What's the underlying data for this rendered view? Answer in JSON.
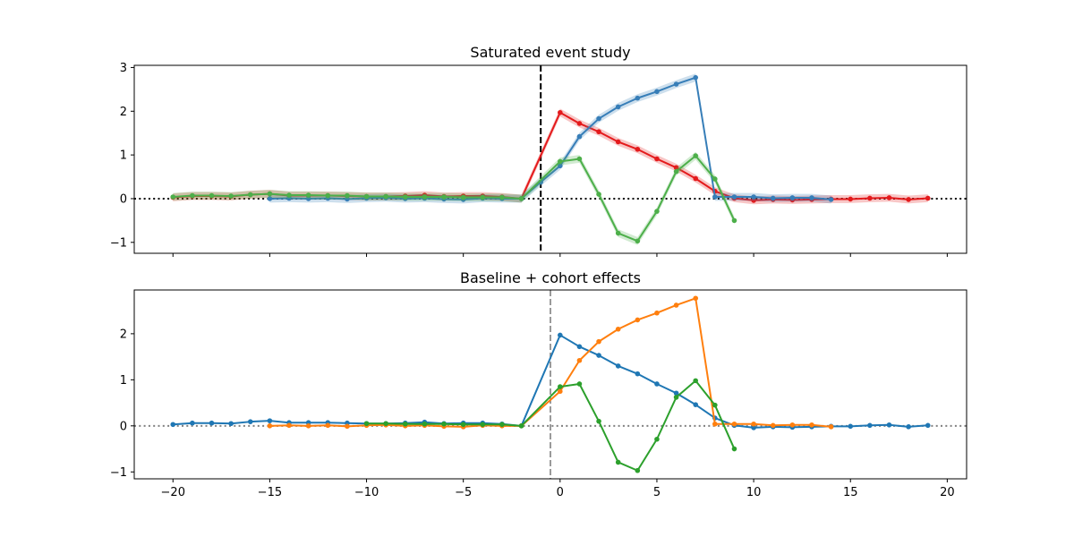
{
  "chart_data": [
    {
      "type": "line",
      "title": "Saturated event study",
      "xlabel": "",
      "ylabel": "",
      "xlim": [
        -22,
        21
      ],
      "ylim": [
        -1.25,
        3.05
      ],
      "yticks": [
        -1,
        0,
        1,
        2,
        3
      ],
      "ytick_labels": [
        "−1",
        "0",
        "1",
        "2",
        "3"
      ],
      "xticks": [
        -20,
        -15,
        -10,
        -5,
        0,
        5,
        10,
        15,
        20
      ],
      "show_x_tick_labels": false,
      "hline": {
        "y": 0,
        "style": "dotted",
        "color": "#000000"
      },
      "vline": {
        "x": -1,
        "style": "dashed",
        "color": "#000000"
      },
      "series": [
        {
          "color": "#e41a1c",
          "band": true,
          "x": [
            -20,
            -19,
            -18,
            -17,
            -16,
            -15,
            -14,
            -13,
            -12,
            -11,
            -10,
            -9,
            -8,
            -7,
            -6,
            -5,
            -4,
            -3,
            -2,
            0,
            1,
            2,
            3,
            4,
            5,
            6,
            7,
            8,
            9,
            10,
            11,
            12,
            13,
            14,
            15,
            16,
            17,
            18,
            19
          ],
          "y": [
            0.03,
            0.06,
            0.06,
            0.05,
            0.09,
            0.11,
            0.07,
            0.07,
            0.07,
            0.06,
            0.05,
            0.05,
            0.06,
            0.08,
            0.05,
            0.06,
            0.06,
            0.04,
            0,
            1.97,
            1.72,
            1.53,
            1.3,
            1.13,
            0.91,
            0.71,
            0.46,
            0.17,
            0.01,
            -0.04,
            -0.02,
            -0.03,
            -0.02,
            -0.01,
            -0.01,
            0.01,
            0.02,
            -0.02,
            0.01
          ]
        },
        {
          "color": "#377eb8",
          "band": true,
          "x": [
            -15,
            -14,
            -13,
            -12,
            -11,
            -10,
            -9,
            -8,
            -7,
            -6,
            -5,
            -4,
            -3,
            -2,
            -1,
            0,
            1,
            2,
            3,
            4,
            5,
            6,
            7,
            8,
            9,
            10,
            11,
            12,
            13,
            14
          ],
          "y": [
            0.0,
            0.01,
            0.0,
            0.01,
            -0.01,
            0.01,
            0.02,
            0.0,
            0.01,
            -0.01,
            -0.02,
            0.01,
            0.0,
            0,
            0.38,
            0.75,
            1.42,
            1.83,
            2.1,
            2.3,
            2.45,
            2.62,
            2.77,
            0.04,
            0.04,
            0.04,
            0.01,
            0.02,
            0.02,
            -0.02
          ]
        },
        {
          "color": "#4daf4a",
          "band": true,
          "x": [
            -20,
            -19,
            -18,
            -17,
            -16,
            -15,
            -14,
            -13,
            -12,
            -11,
            -10,
            -9,
            -8,
            -7,
            -6,
            -5,
            -4,
            -3,
            -2,
            0,
            1,
            2,
            3,
            4,
            5,
            6,
            7,
            8,
            9
          ],
          "y": [
            0.04,
            0.07,
            0.07,
            0.06,
            0.09,
            0.11,
            0.08,
            0.08,
            0.07,
            0.07,
            0.05,
            0.05,
            0.04,
            0.04,
            0.04,
            0.03,
            0.03,
            0.03,
            0,
            0.85,
            0.91,
            0.1,
            -0.79,
            -0.97,
            -0.29,
            0.62,
            0.98,
            0.45,
            -0.5
          ]
        }
      ]
    },
    {
      "type": "line",
      "title": "Baseline + cohort effects",
      "xlabel": "",
      "ylabel": "",
      "xlim": [
        -22,
        21
      ],
      "ylim": [
        -1.15,
        2.95
      ],
      "yticks": [
        -1,
        0,
        1,
        2
      ],
      "ytick_labels": [
        "−1",
        "0",
        "1",
        "2"
      ],
      "xticks": [
        -20,
        -15,
        -10,
        -5,
        0,
        5,
        10,
        15,
        20
      ],
      "xtick_labels": [
        "−20",
        "−15",
        "−10",
        "−5",
        "0",
        "5",
        "10",
        "15",
        "20"
      ],
      "show_x_tick_labels": true,
      "hline": {
        "y": 0,
        "style": "dotted",
        "color": "#808080"
      },
      "vline": {
        "x": -0.5,
        "style": "dashed",
        "color": "#808080"
      },
      "series": [
        {
          "color": "#1f77b4",
          "band": false,
          "x": [
            -20,
            -19,
            -18,
            -17,
            -16,
            -15,
            -14,
            -13,
            -12,
            -11,
            -10,
            -9,
            -8,
            -7,
            -6,
            -5,
            -4,
            -3,
            -2,
            0,
            1,
            2,
            3,
            4,
            5,
            6,
            7,
            8,
            9,
            10,
            11,
            12,
            13,
            14,
            15,
            16,
            17,
            18,
            19
          ],
          "y": [
            0.03,
            0.06,
            0.06,
            0.05,
            0.09,
            0.11,
            0.07,
            0.07,
            0.07,
            0.06,
            0.05,
            0.05,
            0.06,
            0.08,
            0.05,
            0.06,
            0.06,
            0.04,
            0,
            1.97,
            1.72,
            1.53,
            1.3,
            1.13,
            0.91,
            0.71,
            0.46,
            0.17,
            0.01,
            -0.04,
            -0.02,
            -0.03,
            -0.02,
            -0.01,
            -0.01,
            0.01,
            0.02,
            -0.02,
            0.01
          ]
        },
        {
          "color": "#ff7f0e",
          "band": false,
          "x": [
            -15,
            -14,
            -13,
            -12,
            -11,
            -10,
            -9,
            -8,
            -7,
            -6,
            -5,
            -4,
            -3,
            -2,
            0,
            1,
            2,
            3,
            4,
            5,
            6,
            7,
            8,
            9,
            10,
            11,
            12,
            13,
            14
          ],
          "y": [
            0.0,
            0.01,
            0.0,
            0.01,
            -0.01,
            0.01,
            0.02,
            0.0,
            0.01,
            -0.01,
            -0.02,
            0.01,
            0.0,
            0,
            0.75,
            1.42,
            1.83,
            2.1,
            2.3,
            2.45,
            2.62,
            2.77,
            0.04,
            0.04,
            0.04,
            0.01,
            0.02,
            0.02,
            -0.02
          ]
        },
        {
          "color": "#2ca02c",
          "band": false,
          "x": [
            -10,
            -9,
            -8,
            -7,
            -6,
            -5,
            -4,
            -3,
            -2,
            0,
            1,
            2,
            3,
            4,
            5,
            6,
            7,
            8,
            9
          ],
          "y": [
            0.05,
            0.05,
            0.04,
            0.04,
            0.04,
            0.03,
            0.03,
            0.03,
            0,
            0.85,
            0.91,
            0.1,
            -0.79,
            -0.97,
            -0.29,
            0.62,
            0.98,
            0.45,
            -0.5
          ]
        }
      ]
    }
  ]
}
